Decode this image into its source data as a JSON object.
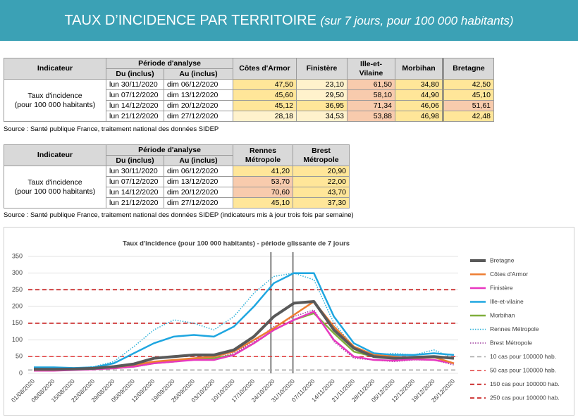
{
  "header": {
    "title": "TAUX D’INCIDENCE PAR TERRITOIRE",
    "subtitle": "(sur 7 jours, pour 100 000 habitants)"
  },
  "table1": {
    "headers": {
      "indicator": "Indicateur",
      "period": "Période d'analyse",
      "from": "Du (inclus)",
      "to": "Au (inclus)",
      "columns": [
        "Côtes d'Armor",
        "Finistère",
        "Ille-et-Vilaine",
        "Morbihan",
        "Bretagne"
      ]
    },
    "indicator": [
      "Taux d'incidence",
      "(pour 100 000 habitants)"
    ],
    "rows": [
      [
        "lun 30/11/2020",
        "dim 06/12/2020",
        "47,50",
        "23,10",
        "61,50",
        "34,80",
        "42,50"
      ],
      [
        "lun 07/12/2020",
        "dim 13/12/2020",
        "45,60",
        "29,50",
        "58,10",
        "44,90",
        "45,10"
      ],
      [
        "lun 14/12/2020",
        "dim 20/12/2020",
        "45,12",
        "36,95",
        "71,34",
        "46,06",
        "51,61"
      ],
      [
        "lun 21/12/2020",
        "dim 27/12/2020",
        "28,18",
        "34,53",
        "53,88",
        "46,98",
        "42,48"
      ]
    ],
    "source": "Source  : Santé publique France, traitement national des données SIDEP"
  },
  "table2": {
    "headers": {
      "indicator": "Indicateur",
      "period": "Période d'analyse",
      "from": "Du (inclus)",
      "to": "Au (inclus)",
      "columns": [
        "Rennes Métropole",
        "Brest Métropole"
      ]
    },
    "indicator": [
      "Taux d'incidence",
      "(pour 100 000 habitants)"
    ],
    "rows": [
      [
        "lun 30/11/2020",
        "dim 06/12/2020",
        "41,20",
        "20,90"
      ],
      [
        "lun 07/12/2020",
        "dim 13/12/2020",
        "53,70",
        "22,00"
      ],
      [
        "lun 14/12/2020",
        "dim 20/12/2020",
        "70,60",
        "43,70"
      ],
      [
        "lun 21/12/2020",
        "dim 27/12/2020",
        "45,10",
        "37,30"
      ]
    ],
    "source": "Source  : Santé publique France, traitement national des données SIDEP (indicateurs mis à jour trois fois par semaine)"
  },
  "chart_data": {
    "type": "line",
    "title": "Taux d'incidence (pour 100 000 habitants) - période glissante de 7 jours",
    "categories": [
      "01/08/2020",
      "08/08/2020",
      "15/08/2020",
      "22/08/2020",
      "29/08/2020",
      "05/09/2020",
      "12/09/2020",
      "19/09/2020",
      "26/09/2020",
      "03/10/2020",
      "10/10/2020",
      "17/10/2020",
      "24/10/2020",
      "31/10/2020",
      "07/11/2020",
      "14/11/2020",
      "21/11/2020",
      "28/11/2020",
      "05/12/2020",
      "12/12/2020",
      "19/12/2020",
      "26/12/2020"
    ],
    "ylim": [
      0,
      350
    ],
    "yticks": [
      0,
      50,
      100,
      150,
      200,
      250,
      300,
      350
    ],
    "grid": true,
    "series": [
      {
        "name": "Bretagne",
        "color": "#595959",
        "linewidth": 4,
        "line_style": "solid",
        "values": [
          12,
          12,
          13,
          15,
          20,
          28,
          45,
          50,
          55,
          55,
          70,
          110,
          170,
          210,
          215,
          130,
          75,
          50,
          45,
          48,
          50,
          45
        ]
      },
      {
        "name": "Côtes d'Armor",
        "color": "#ed7d31",
        "linewidth": 2.5,
        "line_style": "solid",
        "values": [
          10,
          10,
          12,
          14,
          18,
          25,
          35,
          40,
          45,
          50,
          65,
          100,
          135,
          175,
          215,
          140,
          80,
          55,
          50,
          45,
          48,
          30
        ]
      },
      {
        "name": "Finistère",
        "color": "#e837c0",
        "linewidth": 2.5,
        "line_style": "solid",
        "values": [
          8,
          8,
          10,
          12,
          15,
          20,
          30,
          35,
          40,
          40,
          55,
          90,
          130,
          160,
          185,
          100,
          50,
          40,
          38,
          42,
          40,
          30
        ]
      },
      {
        "name": "Ille-et-vilaine",
        "color": "#1ea6e0",
        "linewidth": 2.5,
        "line_style": "solid",
        "values": [
          18,
          18,
          16,
          18,
          30,
          60,
          90,
          110,
          115,
          110,
          140,
          200,
          270,
          300,
          300,
          170,
          90,
          60,
          55,
          55,
          60,
          55
        ]
      },
      {
        "name": "Morbihan",
        "color": "#7fae3c",
        "linewidth": 2.5,
        "line_style": "solid",
        "values": [
          10,
          10,
          11,
          13,
          15,
          20,
          30,
          35,
          42,
          45,
          55,
          90,
          130,
          160,
          180,
          120,
          65,
          50,
          45,
          45,
          48,
          45
        ]
      },
      {
        "name": "Rennes Métropole",
        "color": "#2ab0d8",
        "linewidth": 1.5,
        "line_style": "dotted",
        "values": [
          15,
          15,
          15,
          20,
          35,
          80,
          130,
          160,
          150,
          130,
          170,
          240,
          290,
          300,
          280,
          150,
          80,
          55,
          60,
          55,
          70,
          45
        ]
      },
      {
        "name": "Brest Métropole",
        "color": "#a040a0",
        "linewidth": 1.5,
        "line_style": "dotted",
        "values": [
          8,
          8,
          10,
          12,
          15,
          20,
          35,
          40,
          45,
          45,
          60,
          95,
          140,
          170,
          190,
          95,
          45,
          40,
          35,
          40,
          40,
          25
        ]
      }
    ],
    "reference_lines": [
      {
        "name": "10 cas pour 100000 hab.",
        "value": 10,
        "color": "#a6a6a6",
        "line_style": "dashed"
      },
      {
        "name": "50 cas pour 100000 hab.",
        "value": 50,
        "color": "#e03c3c",
        "line_style": "dashed"
      },
      {
        "name": "150 cas pour 100000 hab.",
        "value": 150,
        "color": "#c00000",
        "line_style": "dashed"
      },
      {
        "name": "250 cas pour 100000 hab.",
        "value": 250,
        "color": "#c00000",
        "line_style": "dashed"
      }
    ]
  }
}
